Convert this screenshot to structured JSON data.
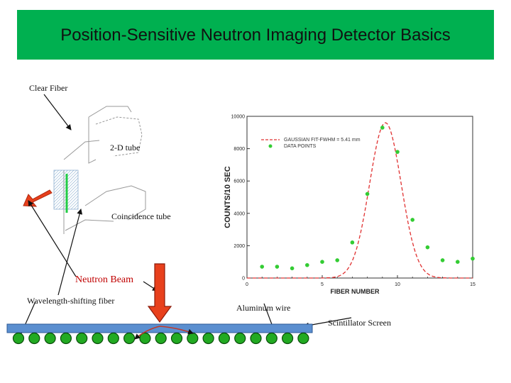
{
  "title": "Position-Sensitive Neutron Imaging Detector Basics",
  "labels": {
    "clear_fiber": "Clear Fiber",
    "tube_2d": "2-D tube",
    "coincidence_tube": "Coincidence tube",
    "neutron_beam": "Neutron Beam",
    "wavelength_fiber": "Wavelength-shifting fiber",
    "aluminum_wire": "Aluminum wire",
    "scintillator": "Scintillator Screen"
  },
  "colors": {
    "title_bg": "#00b050",
    "arrow_red": "#e8401c",
    "fiber_green": "#22aa22",
    "screen_blue": "#5b8fd0",
    "fit_red": "#e03030",
    "points_green": "#33cc33"
  },
  "chart_data": {
    "type": "scatter",
    "xlabel": "FIBER NUMBER",
    "ylabel": "COUNTS/10 SEC",
    "xlim": [
      0,
      15
    ],
    "ylim": [
      0,
      10000
    ],
    "xticks": [
      "0",
      "5",
      "10",
      "15"
    ],
    "yticks": [
      "0",
      "2000",
      "4000",
      "6000",
      "8000",
      "10000"
    ],
    "legend": [
      "GAUSSIAN FIT-FWHM = 5.41 mm",
      "DATA POINTS"
    ],
    "legend_position": "top-left",
    "series": [
      {
        "name": "DATA POINTS",
        "kind": "points",
        "x": [
          1,
          2,
          3,
          4,
          5,
          6,
          7,
          8,
          9,
          10,
          11,
          12,
          13,
          14,
          15
        ],
        "y": [
          700,
          700,
          600,
          800,
          1000,
          1100,
          2200,
          5200,
          9300,
          7800,
          3600,
          1900,
          1100,
          1000,
          1200
        ]
      },
      {
        "name": "GAUSSIAN FIT-FWHM = 5.41 mm",
        "kind": "fit",
        "baseline": 0,
        "amplitude": 9600,
        "center": 9.2,
        "sigma": 1.05
      }
    ]
  }
}
